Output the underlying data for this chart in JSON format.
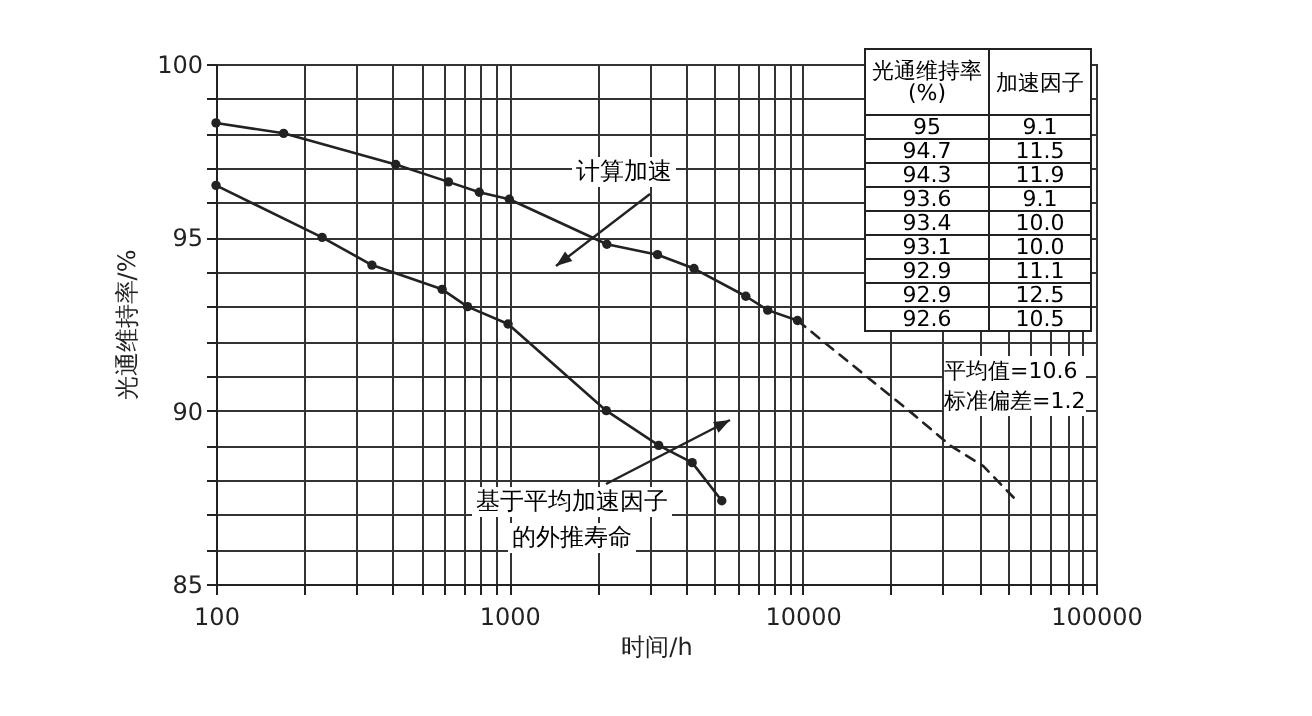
{
  "chart_data": {
    "type": "line",
    "xlabel": "时间/h",
    "ylabel": "光通维持率/%",
    "log": "x",
    "grid": true,
    "marker": "circle",
    "xlim": [
      100,
      100000
    ],
    "xticks": [
      100,
      {
        "value": 200,
        "label": null
      },
      {
        "value": 300,
        "label": null
      },
      {
        "value": 400,
        "label": null
      },
      {
        "value": 500,
        "label": null
      },
      {
        "value": 600,
        "label": null
      },
      {
        "value": 700,
        "label": null
      },
      {
        "value": 800,
        "label": null
      },
      {
        "value": 900,
        "label": null
      },
      1000,
      {
        "value": 2000,
        "label": null
      },
      {
        "value": 3000,
        "label": null
      },
      {
        "value": 4000,
        "label": null
      },
      {
        "value": 5000,
        "label": null
      },
      {
        "value": 6000,
        "label": null
      },
      {
        "value": 7000,
        "label": null
      },
      {
        "value": 8000,
        "label": null
      },
      {
        "value": 9000,
        "label": null
      },
      10000,
      {
        "value": 20000,
        "label": null
      },
      {
        "value": 30000,
        "label": null
      },
      {
        "value": 40000,
        "label": null
      },
      {
        "value": 50000,
        "label": null
      },
      {
        "value": 60000,
        "label": null
      },
      {
        "value": 70000,
        "label": null
      },
      {
        "value": 80000,
        "label": null
      },
      {
        "value": 90000,
        "label": null
      },
      100000
    ],
    "ylim": [
      85,
      100
    ],
    "yticks": [
      85,
      {
        "value": 86,
        "label": null
      },
      {
        "value": 87,
        "label": null
      },
      {
        "value": 88,
        "label": null
      },
      {
        "value": 89,
        "label": null
      },
      90,
      {
        "value": 91,
        "label": null
      },
      {
        "value": 92,
        "label": null
      },
      {
        "value": 93,
        "label": null
      },
      {
        "value": 94,
        "label": null
      },
      95,
      {
        "value": 96,
        "label": null
      },
      {
        "value": 97,
        "label": null
      },
      {
        "value": 98,
        "label": null
      },
      {
        "value": 99,
        "label": null
      },
      100
    ],
    "series": [
      {
        "color": "#222222",
        "x": [
          100,
          170,
          410,
          620,
          790,
          1000,
          2150,
          3200,
          4260,
          6400,
          7600,
          9600
        ],
        "values": [
          98.3,
          98.0,
          97.1,
          96.6,
          96.3,
          96.1,
          94.8,
          94.5,
          94.1,
          93.3,
          92.9,
          92.6
        ]
      },
      {
        "color": "#222222",
        "line_style": "dashed",
        "marker": "none",
        "x": [
          9600,
          23800,
          31800,
          41300,
          53700
        ],
        "values": [
          92.6,
          89.9,
          89.0,
          88.4,
          87.4
        ]
      },
      {
        "color": "#222222",
        "x": [
          100,
          230,
          340,
          590,
          720,
          990,
          2140,
          3230,
          4200,
          5300
        ],
        "values": [
          96.5,
          95.0,
          94.2,
          93.5,
          93.0,
          92.5,
          90.0,
          89.0,
          88.5,
          87.4
        ]
      }
    ],
    "annotations": [
      "计算加速",
      "基于平均加速因子",
      "的外推寿命",
      "光通维持率\n(%)",
      "加速因子",
      "95",
      "9.1",
      "94.7",
      "11.5",
      "94.3",
      "11.9",
      "93.6",
      "9.1",
      "93.4",
      "10.0",
      "93.1",
      "10.0",
      "92.9",
      "11.1",
      "92.9",
      "12.5",
      "92.6",
      "10.5",
      "平均值=10.6",
      "标准偏差=1.2"
    ]
  }
}
